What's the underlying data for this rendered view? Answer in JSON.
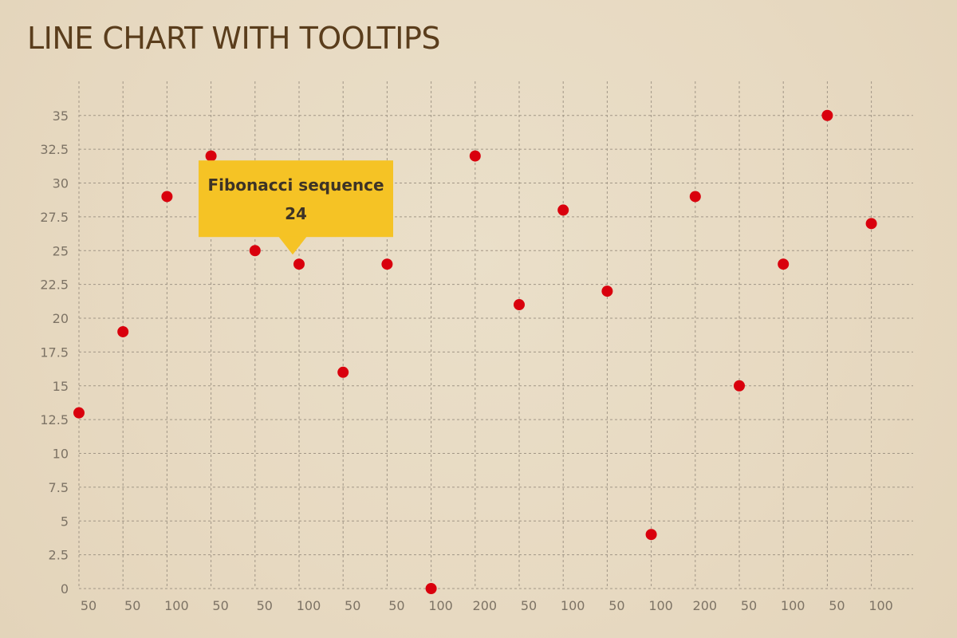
{
  "page": {
    "title": "LINE CHART WITH TOOLTIPS"
  },
  "chart_data": {
    "type": "scatter",
    "title": "LINE CHART WITH TOOLTIPS",
    "xlabel": "",
    "ylabel": "",
    "categories": [
      "50",
      "50",
      "100",
      "50",
      "50",
      "100",
      "50",
      "50",
      "100",
      "200",
      "50",
      "100",
      "50",
      "100",
      "200",
      "50",
      "100",
      "50",
      "100"
    ],
    "series": [
      {
        "name": "Fibonacci sequence",
        "values": [
          13,
          19,
          29,
          32,
          25,
          24,
          16,
          24,
          0,
          32,
          21,
          28,
          22,
          4,
          29,
          15,
          24,
          35,
          27
        ]
      }
    ],
    "yticks": [
      "0",
      "2.5",
      "5",
      "7.5",
      "10",
      "12.5",
      "15",
      "17.5",
      "20",
      "22.5",
      "25",
      "27.5",
      "30",
      "32.5",
      "35"
    ],
    "ylim": [
      0,
      35
    ],
    "grid": true,
    "colors": {
      "point": "#d9000d",
      "tooltip": "#f5c325",
      "grid": "#a19686",
      "title": "#5a3d1c",
      "axis_text": "#7d7365"
    },
    "tooltip": {
      "series_name": "Fibonacci sequence",
      "value": "24",
      "point_index": 5
    }
  }
}
